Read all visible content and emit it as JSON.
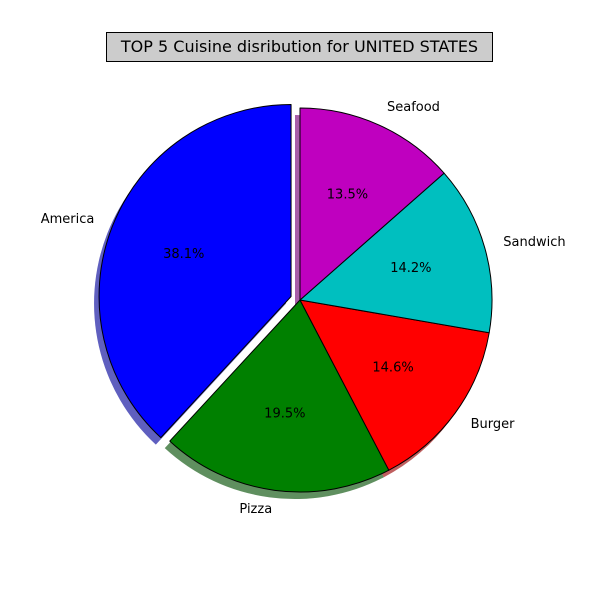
{
  "chart_data": {
    "type": "pie",
    "title": "TOP 5 Cuisine disribution for UNITED STATES",
    "slices": [
      {
        "label": "America",
        "value": 38.1,
        "pct_label": "38.1%",
        "color": "#0000ff",
        "explode": true
      },
      {
        "label": "Pizza",
        "value": 19.5,
        "pct_label": "19.5%",
        "color": "#008000",
        "explode": false
      },
      {
        "label": "Burger",
        "value": 14.6,
        "pct_label": "14.6%",
        "color": "#ff0000",
        "explode": false
      },
      {
        "label": "Sandwich",
        "value": 14.2,
        "pct_label": "14.2%",
        "color": "#00bfbf",
        "explode": false
      },
      {
        "label": "Seafood",
        "value": 13.5,
        "pct_label": "13.5%",
        "color": "#bf00bf",
        "explode": false
      }
    ],
    "start_angle_deg": 90,
    "direction": "counterclockwise",
    "shadow": true,
    "title_box_color": "#cccccc"
  }
}
